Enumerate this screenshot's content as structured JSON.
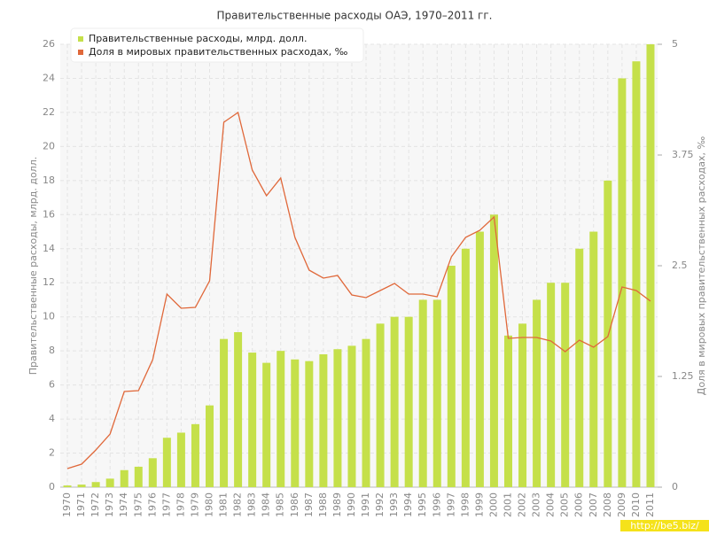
{
  "chart_data": {
    "type": "bar-line",
    "title": "Правительственные расходы ОАЭ, 1970–2011 гг.",
    "ylabel": "Правительственные расходы, млрд. долл.",
    "y2label": "Доля в мировых правительственных расходах, ‰",
    "categories": [
      "1970",
      "1971",
      "1972",
      "1973",
      "1974",
      "1975",
      "1976",
      "1977",
      "1978",
      "1979",
      "1980",
      "1981",
      "1982",
      "1983",
      "1984",
      "1985",
      "1986",
      "1987",
      "1988",
      "1989",
      "1990",
      "1991",
      "1992",
      "1993",
      "1994",
      "1995",
      "1996",
      "1997",
      "1998",
      "1999",
      "2000",
      "2001",
      "2002",
      "2003",
      "2004",
      "2005",
      "2006",
      "2007",
      "2008",
      "2009",
      "2010",
      "2011"
    ],
    "series": [
      {
        "name": "Правительственные расходы, млрд. долл.",
        "color": "#c5e04a",
        "kind": "bar",
        "values": [
          0.1,
          0.15,
          0.3,
          0.5,
          1.0,
          1.2,
          1.7,
          2.9,
          3.2,
          3.7,
          4.8,
          8.7,
          9.1,
          7.9,
          7.3,
          8.0,
          7.5,
          7.4,
          7.8,
          8.1,
          8.3,
          8.7,
          9.6,
          10.0,
          10.0,
          11.0,
          11.0,
          13.0,
          14.0,
          15.0,
          16.0,
          8.9,
          9.6,
          11.0,
          12.0,
          12.0,
          14.0,
          15.0,
          18.0,
          24.0,
          25.0,
          26.0
        ]
      },
      {
        "name": "Доля в мировых правительственных расходах, ‰",
        "color": "#e0683a",
        "kind": "line",
        "axis": "y2",
        "values": [
          0.21,
          0.26,
          0.42,
          0.6,
          1.08,
          1.09,
          1.44,
          2.18,
          2.02,
          2.03,
          2.33,
          4.12,
          4.23,
          3.58,
          3.29,
          3.49,
          2.82,
          2.45,
          2.36,
          2.39,
          2.17,
          2.14,
          2.22,
          2.3,
          2.18,
          2.18,
          2.15,
          2.6,
          2.82,
          2.9,
          3.05,
          1.68,
          1.69,
          1.69,
          1.65,
          1.53,
          1.66,
          1.58,
          1.7,
          2.26,
          2.22,
          2.1
        ]
      }
    ],
    "ylim": [
      0,
      26
    ],
    "yticks": [
      0,
      2,
      4,
      6,
      8,
      10,
      12,
      14,
      16,
      18,
      20,
      22,
      24,
      26
    ],
    "y2lim": [
      0,
      5
    ],
    "y2ticks": [
      0,
      1.25,
      2.5,
      3.75,
      5
    ],
    "grid": true,
    "legend": "top-left"
  },
  "watermark": "http://be5.biz/"
}
